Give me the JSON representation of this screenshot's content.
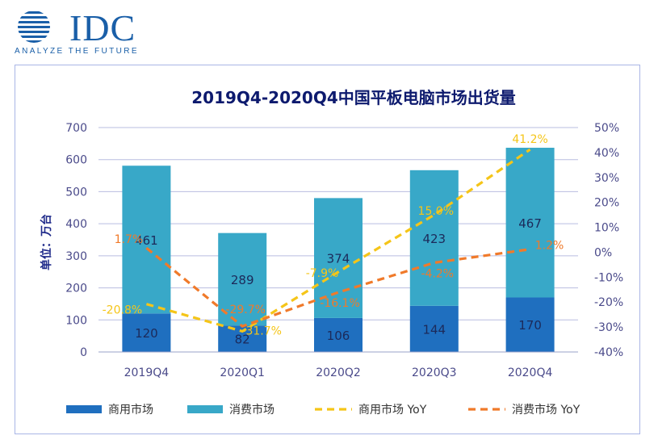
{
  "logo": {
    "wordmark": "IDC",
    "tagline": "ANALYZE THE FUTURE",
    "brand_color": "#1a5fa8"
  },
  "chart_data": {
    "type": "bar",
    "title": "2019Q4-2020Q4中国平板电脑市场出货量",
    "ylabel": "单位：万台",
    "categories": [
      "2019Q4",
      "2020Q1",
      "2020Q2",
      "2020Q3",
      "2020Q4"
    ],
    "stacked": true,
    "ylim": [
      0,
      700
    ],
    "y_ticks": [
      0,
      100,
      200,
      300,
      400,
      500,
      600,
      700
    ],
    "y2lim": [
      -40,
      50
    ],
    "y2_ticks": [
      "-40%",
      "-30%",
      "-20%",
      "-10%",
      "0%",
      "10%",
      "20%",
      "30%",
      "40%",
      "50%"
    ],
    "grid": true,
    "legend_position": "bottom",
    "series": [
      {
        "name": "商用市场",
        "type": "bar",
        "color": "#1f6fbf",
        "values": [
          120,
          82,
          106,
          144,
          170
        ]
      },
      {
        "name": "消费市场",
        "type": "bar",
        "color": "#38a8c8",
        "values": [
          461,
          289,
          374,
          423,
          467
        ]
      },
      {
        "name": "商用市场 YoY",
        "type": "line",
        "axis": "right",
        "style": "dashed",
        "color": "#f5c518",
        "values": [
          -20.8,
          -31.7,
          -7.9,
          15.0,
          41.2
        ],
        "labels": [
          "-20.8%",
          "-31.7%",
          "-7.9%",
          "15.0%",
          "41.2%"
        ]
      },
      {
        "name": "消费市场 YoY",
        "type": "line",
        "axis": "right",
        "style": "dashed",
        "color": "#f07a2a",
        "values": [
          1.7,
          -29.7,
          -16.1,
          -4.2,
          1.2
        ],
        "labels": [
          "1.7%",
          "-29.7%",
          "-16.1%",
          "-4.2%",
          "1.2%"
        ]
      }
    ]
  }
}
